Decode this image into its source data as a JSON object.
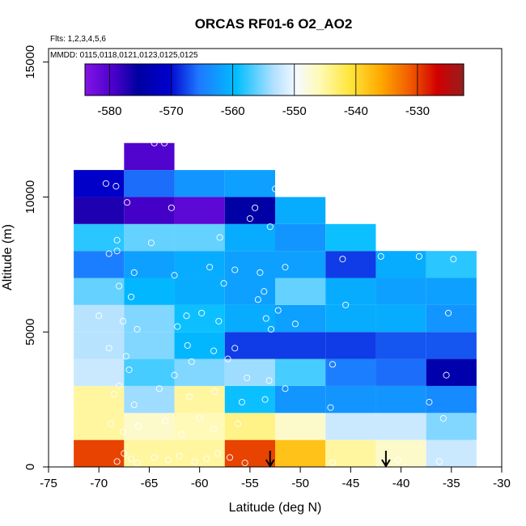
{
  "chart_data": {
    "type": "heatmap",
    "title": "ORCAS RF01-6 O2_AO2",
    "subtitle_flights": "Flts: 1,2,3,4,5,6",
    "subtitle_dates": "MMDD: 0115,0118,0121,0123,0125,0125",
    "xlabel": "Latitude (deg N)",
    "ylabel": "Altitude (m)",
    "xlim": [
      -75,
      -30
    ],
    "ylim": [
      0,
      15500
    ],
    "xticks": [
      -75,
      -70,
      -65,
      -60,
      -55,
      -50,
      -45,
      -40,
      -35,
      -30
    ],
    "xtick_labels": [
      "-75",
      "-70",
      "-65",
      "-60",
      "-55",
      "-50",
      "-45",
      "-40",
      "-35",
      "-30"
    ],
    "yticks": [
      0,
      5000,
      10000,
      15000
    ],
    "ytick_labels": [
      "0",
      "5000",
      "10000",
      "15000"
    ],
    "colorbar": {
      "vmin": -584,
      "vmax": -522.5,
      "ticks": [
        -580,
        -570,
        -560,
        -550,
        -540,
        -530
      ],
      "tick_labels": [
        "-580",
        "-570",
        "-560",
        "-550",
        "-540",
        "-530"
      ]
    },
    "bin_width_deg": 5,
    "bin_height_m": 1000,
    "cells": [
      {
        "lat": -70,
        "alt": 0,
        "v": -530
      },
      {
        "lat": -65,
        "alt": 0,
        "v": -545
      },
      {
        "lat": -60,
        "alt": 0,
        "v": -545
      },
      {
        "lat": -55,
        "alt": 0,
        "v": -530
      },
      {
        "lat": -50,
        "alt": 0,
        "v": -538
      },
      {
        "lat": -45,
        "alt": 0,
        "v": -545
      },
      {
        "lat": -40,
        "alt": 0,
        "v": -547
      },
      {
        "lat": -35,
        "alt": 0,
        "v": -552
      },
      {
        "lat": -70,
        "alt": 1000,
        "v": -545
      },
      {
        "lat": -65,
        "alt": 1000,
        "v": -547
      },
      {
        "lat": -60,
        "alt": 1000,
        "v": -546
      },
      {
        "lat": -55,
        "alt": 1000,
        "v": -544
      },
      {
        "lat": -50,
        "alt": 1000,
        "v": -547
      },
      {
        "lat": -45,
        "alt": 1000,
        "v": -552
      },
      {
        "lat": -40,
        "alt": 1000,
        "v": -552
      },
      {
        "lat": -35,
        "alt": 1000,
        "v": -555
      },
      {
        "lat": -70,
        "alt": 2000,
        "v": -545
      },
      {
        "lat": -65,
        "alt": 2000,
        "v": -554
      },
      {
        "lat": -60,
        "alt": 2000,
        "v": -545
      },
      {
        "lat": -55,
        "alt": 2000,
        "v": -559
      },
      {
        "lat": -50,
        "alt": 2000,
        "v": -563
      },
      {
        "lat": -45,
        "alt": 2000,
        "v": -563
      },
      {
        "lat": -40,
        "alt": 2000,
        "v": -563
      },
      {
        "lat": -35,
        "alt": 2000,
        "v": -564
      },
      {
        "lat": -70,
        "alt": 3000,
        "v": -552
      },
      {
        "lat": -65,
        "alt": 3000,
        "v": -557
      },
      {
        "lat": -60,
        "alt": 3000,
        "v": -555
      },
      {
        "lat": -55,
        "alt": 3000,
        "v": -554
      },
      {
        "lat": -50,
        "alt": 3000,
        "v": -557
      },
      {
        "lat": -45,
        "alt": 3000,
        "v": -565
      },
      {
        "lat": -40,
        "alt": 3000,
        "v": -566
      },
      {
        "lat": -35,
        "alt": 3000,
        "v": -574
      },
      {
        "lat": -70,
        "alt": 4000,
        "v": -553
      },
      {
        "lat": -65,
        "alt": 4000,
        "v": -555
      },
      {
        "lat": -60,
        "alt": 4000,
        "v": -560
      },
      {
        "lat": -55,
        "alt": 4000,
        "v": -568
      },
      {
        "lat": -50,
        "alt": 4000,
        "v": -568
      },
      {
        "lat": -45,
        "alt": 4000,
        "v": -568
      },
      {
        "lat": -40,
        "alt": 4000,
        "v": -567
      },
      {
        "lat": -35,
        "alt": 4000,
        "v": -567
      },
      {
        "lat": -70,
        "alt": 5000,
        "v": -553
      },
      {
        "lat": -65,
        "alt": 5000,
        "v": -555
      },
      {
        "lat": -60,
        "alt": 5000,
        "v": -559
      },
      {
        "lat": -55,
        "alt": 5000,
        "v": -561
      },
      {
        "lat": -50,
        "alt": 5000,
        "v": -562
      },
      {
        "lat": -45,
        "alt": 5000,
        "v": -561
      },
      {
        "lat": -40,
        "alt": 5000,
        "v": -561
      },
      {
        "lat": -35,
        "alt": 5000,
        "v": -563
      },
      {
        "lat": -70,
        "alt": 6000,
        "v": -556
      },
      {
        "lat": -65,
        "alt": 6000,
        "v": -560
      },
      {
        "lat": -60,
        "alt": 6000,
        "v": -561
      },
      {
        "lat": -55,
        "alt": 6000,
        "v": -562
      },
      {
        "lat": -50,
        "alt": 6000,
        "v": -556
      },
      {
        "lat": -45,
        "alt": 6000,
        "v": -561
      },
      {
        "lat": -40,
        "alt": 6000,
        "v": -562
      },
      {
        "lat": -35,
        "alt": 6000,
        "v": -562
      },
      {
        "lat": -70,
        "alt": 7000,
        "v": -565
      },
      {
        "lat": -65,
        "alt": 7000,
        "v": -562
      },
      {
        "lat": -60,
        "alt": 7000,
        "v": -561
      },
      {
        "lat": -55,
        "alt": 7000,
        "v": -562
      },
      {
        "lat": -50,
        "alt": 7000,
        "v": -562
      },
      {
        "lat": -45,
        "alt": 7000,
        "v": -568
      },
      {
        "lat": -40,
        "alt": 7000,
        "v": -561
      },
      {
        "lat": -35,
        "alt": 7000,
        "v": -558
      },
      {
        "lat": -70,
        "alt": 8000,
        "v": -558
      },
      {
        "lat": -65,
        "alt": 8000,
        "v": -556
      },
      {
        "lat": -60,
        "alt": 8000,
        "v": -556
      },
      {
        "lat": -55,
        "alt": 8000,
        "v": -561
      },
      {
        "lat": -50,
        "alt": 8000,
        "v": -563
      },
      {
        "lat": -45,
        "alt": 8000,
        "v": -559
      },
      {
        "lat": -70,
        "alt": 9000,
        "v": -577
      },
      {
        "lat": -65,
        "alt": 9000,
        "v": -579
      },
      {
        "lat": -60,
        "alt": 9000,
        "v": -581
      },
      {
        "lat": -55,
        "alt": 9000,
        "v": -575
      },
      {
        "lat": -50,
        "alt": 9000,
        "v": -561
      },
      {
        "lat": -70,
        "alt": 10000,
        "v": -571
      },
      {
        "lat": -65,
        "alt": 10000,
        "v": -566
      },
      {
        "lat": -60,
        "alt": 10000,
        "v": -563
      },
      {
        "lat": -55,
        "alt": 10000,
        "v": -562
      },
      {
        "lat": -65,
        "alt": 11000,
        "v": -580
      }
    ],
    "observations": [
      {
        "lat": -68.2,
        "alt": 200
      },
      {
        "lat": -67.5,
        "alt": 500
      },
      {
        "lat": -66.8,
        "alt": 300
      },
      {
        "lat": -66.2,
        "alt": 150
      },
      {
        "lat": -64.5,
        "alt": 350
      },
      {
        "lat": -63.1,
        "alt": 250
      },
      {
        "lat": -62.0,
        "alt": 400
      },
      {
        "lat": -60.5,
        "alt": 200
      },
      {
        "lat": -59.3,
        "alt": 300
      },
      {
        "lat": -58.2,
        "alt": 500
      },
      {
        "lat": -57.0,
        "alt": 350
      },
      {
        "lat": -55.5,
        "alt": 150
      },
      {
        "lat": -46.8,
        "alt": 150
      },
      {
        "lat": -40.3,
        "alt": 250
      },
      {
        "lat": -36.2,
        "alt": 200
      },
      {
        "lat": -68.8,
        "alt": 1600
      },
      {
        "lat": -67.6,
        "alt": 1300
      },
      {
        "lat": -66.1,
        "alt": 1500
      },
      {
        "lat": -63.4,
        "alt": 1700
      },
      {
        "lat": -61.8,
        "alt": 1200
      },
      {
        "lat": -60.0,
        "alt": 1800
      },
      {
        "lat": -58.6,
        "alt": 1400
      },
      {
        "lat": -56.2,
        "alt": 1600
      },
      {
        "lat": -35.8,
        "alt": 1800
      },
      {
        "lat": -68.5,
        "alt": 2700
      },
      {
        "lat": -66.5,
        "alt": 2300
      },
      {
        "lat": -64.0,
        "alt": 2900
      },
      {
        "lat": -61.0,
        "alt": 2600
      },
      {
        "lat": -58.5,
        "alt": 2800
      },
      {
        "lat": -55.8,
        "alt": 2400
      },
      {
        "lat": -53.5,
        "alt": 2500
      },
      {
        "lat": -51.5,
        "alt": 2900
      },
      {
        "lat": -47.0,
        "alt": 2200
      },
      {
        "lat": -37.2,
        "alt": 2400
      },
      {
        "lat": -68.0,
        "alt": 3000
      },
      {
        "lat": -67.0,
        "alt": 3600
      },
      {
        "lat": -62.5,
        "alt": 3400
      },
      {
        "lat": -60.8,
        "alt": 3900
      },
      {
        "lat": -55.3,
        "alt": 3300
      },
      {
        "lat": -53.1,
        "alt": 3200
      },
      {
        "lat": -46.8,
        "alt": 3800
      },
      {
        "lat": -35.5,
        "alt": 3400
      },
      {
        "lat": -69.0,
        "alt": 4400
      },
      {
        "lat": -67.3,
        "alt": 4100
      },
      {
        "lat": -61.2,
        "alt": 4500
      },
      {
        "lat": -58.6,
        "alt": 4300
      },
      {
        "lat": -57.2,
        "alt": 4000
      },
      {
        "lat": -56.5,
        "alt": 4400
      },
      {
        "lat": -70.0,
        "alt": 5600
      },
      {
        "lat": -67.6,
        "alt": 5400
      },
      {
        "lat": -66.2,
        "alt": 5100
      },
      {
        "lat": -62.2,
        "alt": 5200
      },
      {
        "lat": -61.3,
        "alt": 5600
      },
      {
        "lat": -59.8,
        "alt": 5700
      },
      {
        "lat": -58.1,
        "alt": 5400
      },
      {
        "lat": -53.4,
        "alt": 5500
      },
      {
        "lat": -52.9,
        "alt": 5100
      },
      {
        "lat": -52.2,
        "alt": 5800
      },
      {
        "lat": -50.5,
        "alt": 5300
      },
      {
        "lat": -45.5,
        "alt": 6000
      },
      {
        "lat": -35.3,
        "alt": 5700
      },
      {
        "lat": -68.0,
        "alt": 6700
      },
      {
        "lat": -66.8,
        "alt": 6300
      },
      {
        "lat": -57.6,
        "alt": 6800
      },
      {
        "lat": -54.2,
        "alt": 6200
      },
      {
        "lat": -53.6,
        "alt": 6500
      },
      {
        "lat": -69.0,
        "alt": 7900
      },
      {
        "lat": -68.2,
        "alt": 8000
      },
      {
        "lat": -66.5,
        "alt": 7200
      },
      {
        "lat": -62.5,
        "alt": 7100
      },
      {
        "lat": -59.0,
        "alt": 7400
      },
      {
        "lat": -56.5,
        "alt": 7300
      },
      {
        "lat": -54.0,
        "alt": 7200
      },
      {
        "lat": -51.5,
        "alt": 7400
      },
      {
        "lat": -45.8,
        "alt": 7700
      },
      {
        "lat": -42.0,
        "alt": 7800
      },
      {
        "lat": -38.2,
        "alt": 7800
      },
      {
        "lat": -34.8,
        "alt": 7700
      },
      {
        "lat": -68.2,
        "alt": 8400
      },
      {
        "lat": -64.8,
        "alt": 8300
      },
      {
        "lat": -58.0,
        "alt": 8500
      },
      {
        "lat": -53.0,
        "alt": 8900
      },
      {
        "lat": -67.2,
        "alt": 9800
      },
      {
        "lat": -62.8,
        "alt": 9600
      },
      {
        "lat": -55.0,
        "alt": 9200
      },
      {
        "lat": -54.5,
        "alt": 9600
      },
      {
        "lat": -69.3,
        "alt": 10500
      },
      {
        "lat": -68.3,
        "alt": 10400
      },
      {
        "lat": -52.5,
        "alt": 10300
      },
      {
        "lat": -63.5,
        "alt": 12000
      },
      {
        "lat": -64.5,
        "alt": 12000
      },
      {
        "lat": -62.0,
        "alt": 11800
      }
    ],
    "arrows": [
      {
        "lat": -53.0,
        "alt_top": 600,
        "alt_bottom": 0
      },
      {
        "lat": -41.5,
        "alt_top": 600,
        "alt_bottom": 0
      }
    ]
  }
}
